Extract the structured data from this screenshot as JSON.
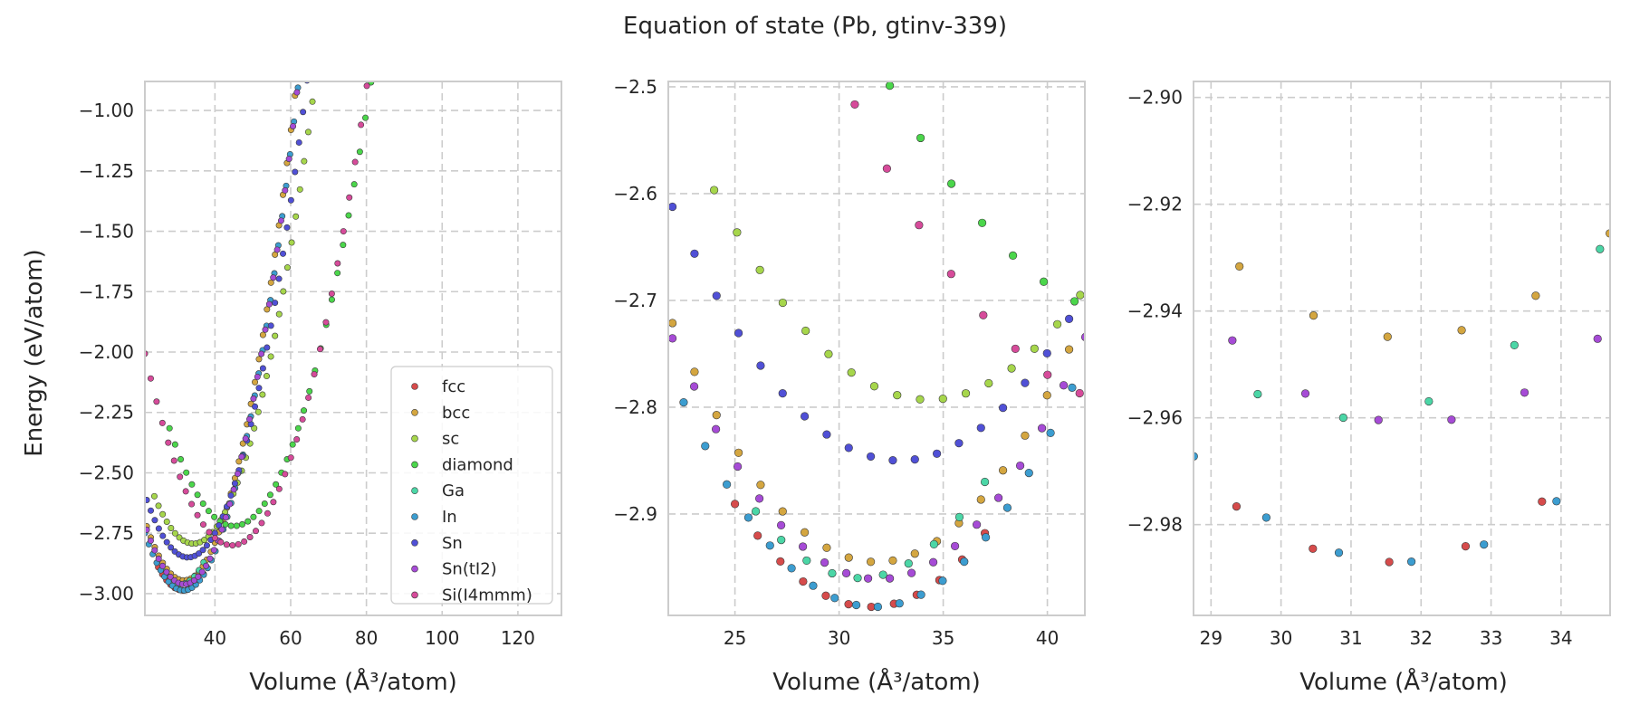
{
  "figure": {
    "title": "Equation of state (Pb, gtinv-339)",
    "ylabel": "Energy (eV/atom)"
  },
  "chart_data": [
    {
      "type": "scatter",
      "xlabel": "Volume (Å³/atom)",
      "xlim": [
        21.5,
        131.5
      ],
      "ylim": [
        -3.09,
        -0.88
      ],
      "xticks": [
        40,
        60,
        80,
        100,
        120
      ],
      "yticks": [
        -3.0,
        -2.75,
        -2.5,
        -2.25,
        -2.0,
        -1.75,
        -1.5,
        -1.25,
        -1.0
      ],
      "grid": true,
      "legend_position": "lower-right",
      "legend": [
        "fcc",
        "bcc",
        "sc",
        "diamond",
        "Ga",
        "In",
        "Sn",
        "Sn(tI2)",
        "Si(I4mmm)"
      ],
      "series": [
        {
          "name": "fcc",
          "color": "#d64b4b",
          "curve": {
            "v0": 31.5,
            "e0": -2.987,
            "a": 0.00228,
            "vmin": 25,
            "vmax": 37,
            "n": 12
          }
        },
        {
          "name": "bcc",
          "color": "#d4a640",
          "curve": {
            "v0": 31.8,
            "e0": -2.945,
            "a": 0.00233,
            "vmin": 22,
            "vmax": 95,
            "n": 70
          }
        },
        {
          "name": "sc",
          "color": "#a6d64b",
          "curve": {
            "v0": 34.3,
            "e0": -2.793,
            "a": 0.00185,
            "vmin": 24,
            "vmax": 102,
            "n": 72
          }
        },
        {
          "name": "diamond",
          "color": "#4bd64b",
          "curve": {
            "v0": 45.0,
            "e0": -2.72,
            "a": 0.0014,
            "vmin": 28,
            "vmax": 130,
            "n": 70
          }
        },
        {
          "name": "Ga",
          "color": "#4bd6a6",
          "curve": {
            "v0": 31.0,
            "e0": -2.96,
            "a": 0.0025,
            "vmin": 26,
            "vmax": 37,
            "n": 10
          }
        },
        {
          "name": "In",
          "color": "#3c9dd0",
          "curve": {
            "v0": 31.7,
            "e0": -2.987,
            "a": 0.00228,
            "vmin": 21.5,
            "vmax": 93,
            "n": 70
          }
        },
        {
          "name": "Sn",
          "color": "#5050d6",
          "curve": {
            "v0": 32.9,
            "e0": -2.85,
            "a": 0.002,
            "vmin": 22,
            "vmax": 95,
            "n": 70
          }
        },
        {
          "name": "Sn(tI2)",
          "color": "#a64bd6",
          "curve": {
            "v0": 31.9,
            "e0": -2.961,
            "a": 0.0023,
            "vmin": 22,
            "vmax": 94,
            "n": 70
          }
        },
        {
          "name": "Si(I4mmm)",
          "color": "#d64b9a",
          "curve": {
            "v0": 44.5,
            "e0": -2.8,
            "a": 0.0015,
            "vmin": 21.5,
            "vmax": 131,
            "n": 72
          }
        }
      ]
    },
    {
      "type": "scatter",
      "xlabel": "Volume (Å³/atom)",
      "xlim": [
        21.8,
        41.8
      ],
      "ylim": [
        -2.995,
        -2.495
      ],
      "xticks": [
        25,
        30,
        35,
        40
      ],
      "yticks": [
        -2.9,
        -2.8,
        -2.7,
        -2.6,
        -2.5
      ],
      "grid": true
    },
    {
      "type": "scatter",
      "xlabel": "Volume (Å³/atom)",
      "xlim": [
        28.75,
        34.7
      ],
      "ylim": [
        -2.997,
        -2.897
      ],
      "xticks": [
        29,
        30,
        31,
        32,
        33,
        34
      ],
      "yticks": [
        -2.98,
        -2.96,
        -2.94,
        -2.92,
        -2.9
      ],
      "grid": true
    }
  ]
}
